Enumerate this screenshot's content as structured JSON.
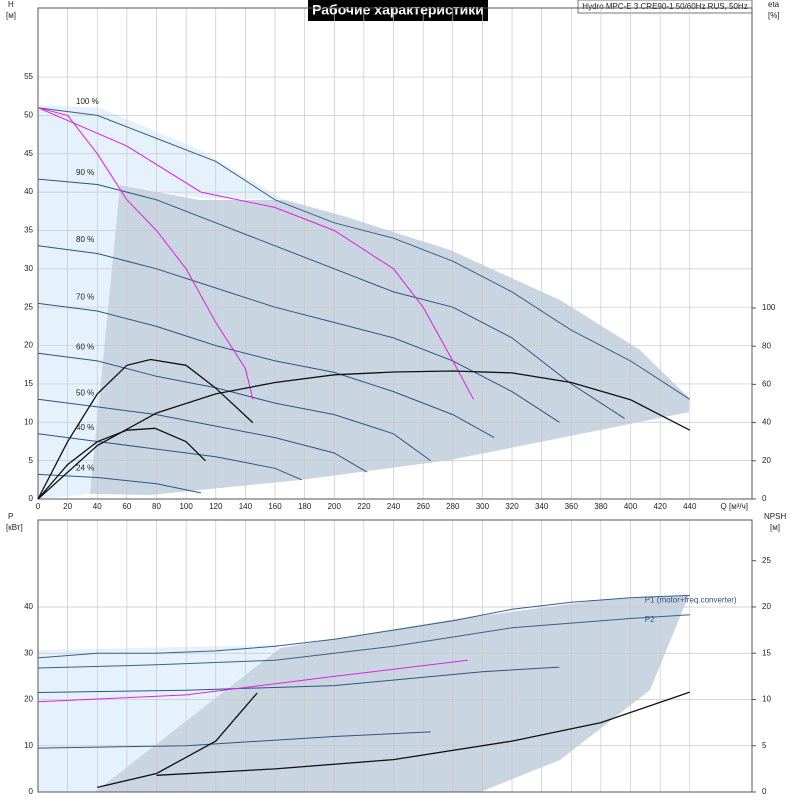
{
  "chart_data": [
    {
      "type": "line",
      "title": "Рабочие характеристики",
      "annotation": "Hydro MPC-E 3 CRE90-1 50/60Hz RUS, 50Hz",
      "x_label": "Q [м³/ч]",
      "y_label": "H",
      "y_unit": "[м]",
      "y2_label": "eta",
      "y2_unit": "[%]",
      "xlim": [
        0,
        482
      ],
      "xticks": [
        0,
        20,
        40,
        60,
        80,
        100,
        120,
        140,
        160,
        180,
        200,
        220,
        240,
        260,
        280,
        300,
        320,
        340,
        360,
        380,
        400,
        420,
        440
      ],
      "ylim": [
        0,
        64
      ],
      "yticks": [
        0,
        5,
        10,
        15,
        20,
        25,
        30,
        35,
        40,
        45,
        50,
        55
      ],
      "y2lim": [
        0,
        257
      ],
      "y2ticks": [
        0,
        20,
        40,
        60,
        80,
        100
      ],
      "grid": true,
      "series": [
        {
          "name": "100 %",
          "color": "#3a5f8a",
          "x": [
            0,
            40,
            80,
            120,
            160,
            200,
            240,
            280,
            320,
            360,
            400,
            440
          ],
          "values": [
            51,
            50,
            47,
            44,
            39,
            36,
            34,
            31,
            27,
            22,
            18,
            13
          ]
        },
        {
          "name": "90 %",
          "color": "#2e5585",
          "x": [
            0,
            40,
            80,
            120,
            160,
            200,
            240,
            280,
            320,
            360,
            396
          ],
          "values": [
            41.7,
            41,
            39,
            36,
            33,
            30,
            27,
            25,
            21,
            15,
            10.5
          ]
        },
        {
          "name": "80 %",
          "color": "#2e5585",
          "x": [
            0,
            40,
            80,
            120,
            160,
            200,
            240,
            280,
            320,
            352
          ],
          "values": [
            33,
            32,
            30,
            27.5,
            25,
            23,
            21,
            18,
            14,
            10
          ]
        },
        {
          "name": "70 %",
          "color": "#2e5585",
          "x": [
            0,
            40,
            80,
            120,
            160,
            200,
            240,
            280,
            308
          ],
          "values": [
            25.5,
            24.5,
            22.5,
            20,
            18,
            16.5,
            14,
            11,
            8
          ]
        },
        {
          "name": "60 %",
          "color": "#2e5585",
          "x": [
            0,
            40,
            80,
            120,
            160,
            200,
            240,
            265
          ],
          "values": [
            19,
            18,
            16,
            14.5,
            12.5,
            11,
            8.5,
            5
          ]
        },
        {
          "name": "50 %",
          "color": "#2e5585",
          "x": [
            0,
            40,
            80,
            120,
            160,
            200,
            222
          ],
          "values": [
            13,
            12,
            11,
            9.5,
            8,
            6,
            3.5
          ]
        },
        {
          "name": "40 %",
          "color": "#2e5585",
          "x": [
            0,
            40,
            80,
            120,
            160,
            178
          ],
          "values": [
            8.5,
            7.5,
            6.5,
            5.5,
            4,
            2.5
          ]
        },
        {
          "name": "24 %",
          "color": "#2e5585",
          "x": [
            0,
            40,
            80,
            110
          ],
          "values": [
            3.2,
            2.8,
            2,
            0.8
          ]
        },
        {
          "color": "#e020e0",
          "x": [
            0,
            20,
            40,
            60,
            80,
            100,
            120,
            140,
            145
          ],
          "values": [
            51,
            50,
            45,
            39,
            35,
            30,
            23,
            17,
            13
          ]
        },
        {
          "color": "#e020e0",
          "x": [
            0,
            60,
            110,
            160,
            200,
            240,
            260,
            280,
            294
          ],
          "values": [
            51,
            46,
            40,
            38,
            35,
            30,
            25,
            18,
            13
          ]
        },
        {
          "color": "#111111",
          "axis": "y2",
          "x": [
            0,
            40,
            80,
            120,
            160,
            200,
            240,
            280,
            320,
            360,
            400,
            440
          ],
          "values": [
            0,
            28,
            45,
            55,
            61,
            65,
            66.5,
            67,
            66,
            61,
            52,
            36
          ]
        },
        {
          "color": "#111111",
          "axis": "y2",
          "x": [
            0,
            20,
            40,
            60,
            79,
            100,
            113
          ],
          "values": [
            0,
            18,
            30,
            36,
            37,
            30,
            20
          ]
        },
        {
          "color": "#111111",
          "axis": "y2",
          "x": [
            0,
            20,
            40,
            60,
            76,
            100,
            120,
            145
          ],
          "values": [
            0,
            30,
            55,
            70,
            73,
            70,
            58,
            40
          ]
        }
      ]
    },
    {
      "type": "line",
      "y_label": "P",
      "y_unit": "[кВт]",
      "y2_label": "NPSH",
      "y2_unit": "[м]",
      "xlim": [
        0,
        482
      ],
      "xticks": [
        0,
        20,
        40,
        60,
        80,
        100,
        120,
        140,
        160,
        180,
        200,
        220,
        240,
        260,
        280,
        300,
        320,
        340,
        360,
        380,
        400,
        420,
        440
      ],
      "ylim": [
        0,
        58.8
      ],
      "yticks": [
        0,
        10,
        20,
        30,
        40
      ],
      "y2lim": [
        0,
        29.4
      ],
      "y2ticks": [
        0,
        5,
        10,
        15,
        20,
        25
      ],
      "grid": true,
      "series": [
        {
          "name": "P1 (motor+freq.converter)",
          "color": "#3a5f8a",
          "x": [
            0,
            40,
            80,
            120,
            160,
            200,
            240,
            280,
            320,
            360,
            400,
            440
          ],
          "values": [
            29,
            30,
            30,
            30.5,
            31.5,
            33,
            35,
            37,
            39.5,
            41,
            42,
            42.5
          ]
        },
        {
          "name": "P2",
          "color": "#3a5f8a",
          "x": [
            0,
            80,
            160,
            240,
            320,
            400,
            440
          ],
          "values": [
            26.8,
            27.5,
            28.5,
            31.5,
            35.5,
            37.5,
            38.3
          ]
        },
        {
          "color": "#2e5585",
          "x": [
            0,
            100,
            200,
            300,
            352
          ],
          "values": [
            21.5,
            22,
            23,
            26,
            27
          ]
        },
        {
          "color": "#2e5585",
          "x": [
            0,
            100,
            200,
            265
          ],
          "values": [
            9.5,
            10,
            12,
            13
          ]
        },
        {
          "color": "#e020e0",
          "x": [
            0,
            100,
            200,
            290
          ],
          "values": [
            19.5,
            21,
            25,
            28.5
          ]
        },
        {
          "color": "#111111",
          "axis": "y2",
          "x": [
            80,
            160,
            240,
            320,
            380,
            440
          ],
          "values": [
            1.8,
            2.5,
            3.5,
            5.5,
            7.5,
            10.8
          ]
        },
        {
          "color": "#111111",
          "axis": "y2",
          "x": [
            40,
            80,
            120,
            148
          ],
          "values": [
            0.5,
            2,
            5.5,
            10.7
          ]
        }
      ]
    }
  ]
}
